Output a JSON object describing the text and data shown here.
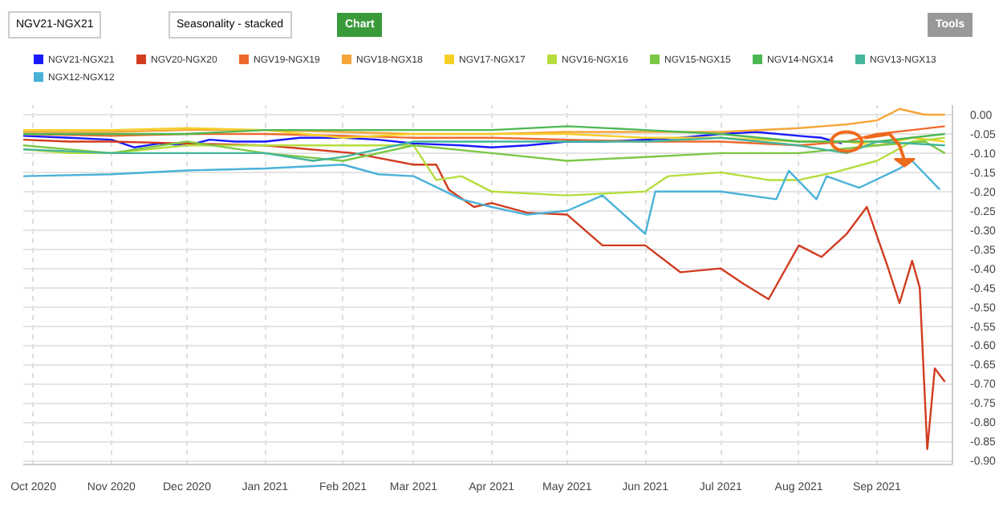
{
  "chart_data": {
    "type": "line",
    "annotations": [
      "NGV21-NGX21",
      "Seasonality - stacked",
      "Chart",
      "Tools"
    ],
    "xlim": [
      "2020-09-27",
      "2021-10-01"
    ],
    "xticks": [
      {
        "value": "2020-10-01",
        "label": "Oct 2020"
      },
      {
        "value": "2020-11-01",
        "label": "Nov 2020"
      },
      {
        "value": "2020-12-01",
        "label": "Dec 2020"
      },
      {
        "value": "2021-01-01",
        "label": "Jan 2021"
      },
      {
        "value": "2021-02-01",
        "label": "Feb 2021"
      },
      {
        "value": "2021-03-01",
        "label": "Mar 2021"
      },
      {
        "value": "2021-04-01",
        "label": "Apr 2021"
      },
      {
        "value": "2021-05-01",
        "label": "May 2021"
      },
      {
        "value": "2021-06-01",
        "label": "Jun 2021"
      },
      {
        "value": "2021-07-01",
        "label": "Jul 2021"
      },
      {
        "value": "2021-08-01",
        "label": "Aug 2021"
      },
      {
        "value": "2021-09-01",
        "label": "Sep 2021"
      }
    ],
    "ylim": [
      -0.91,
      0.025
    ],
    "yticks": [
      {
        "value": 0,
        "label": "0.00"
      },
      {
        "value": -0.05,
        "label": "-0.05"
      },
      {
        "value": -0.1,
        "label": "-0.10"
      },
      {
        "value": -0.15,
        "label": "-0.15"
      },
      {
        "value": -0.2,
        "label": "-0.20"
      },
      {
        "value": -0.25,
        "label": "-0.25"
      },
      {
        "value": -0.3,
        "label": "-0.30"
      },
      {
        "value": -0.35,
        "label": "-0.35"
      },
      {
        "value": -0.4,
        "label": "-0.40"
      },
      {
        "value": -0.45,
        "label": "-0.45"
      },
      {
        "value": -0.5,
        "label": "-0.50"
      },
      {
        "value": -0.55,
        "label": "-0.55"
      },
      {
        "value": -0.6,
        "label": "-0.60"
      },
      {
        "value": -0.65,
        "label": "-0.65"
      },
      {
        "value": -0.7,
        "label": "-0.70"
      },
      {
        "value": -0.75,
        "label": "-0.75"
      },
      {
        "value": -0.8,
        "label": "-0.80"
      },
      {
        "value": -0.85,
        "label": "-0.85"
      },
      {
        "value": -0.9,
        "label": "-0.90"
      }
    ],
    "grid": true,
    "legend": "top",
    "marker": "none",
    "line_style": "solid",
    "series": [
      {
        "name": "NGV21-NGX21",
        "color": "#1a1aff",
        "x": [
          "2020-09-27",
          "2020-10-15",
          "2020-11-01",
          "2020-11-10",
          "2020-11-20",
          "2020-12-01",
          "2020-12-10",
          "2020-12-20",
          "2021-01-01",
          "2021-01-15",
          "2021-02-01",
          "2021-02-15",
          "2021-03-01",
          "2021-03-20",
          "2021-04-01",
          "2021-04-15",
          "2021-05-01",
          "2021-05-15",
          "2021-06-01",
          "2021-06-15",
          "2021-07-01",
          "2021-07-15",
          "2021-08-01",
          "2021-08-10",
          "2021-08-18"
        ],
        "values": [
          -0.055,
          -0.06,
          -0.065,
          -0.085,
          -0.075,
          -0.08,
          -0.065,
          -0.07,
          -0.07,
          -0.06,
          -0.06,
          -0.065,
          -0.075,
          -0.08,
          -0.085,
          -0.08,
          -0.07,
          -0.07,
          -0.065,
          -0.06,
          -0.05,
          -0.045,
          -0.055,
          -0.06,
          -0.075
        ]
      },
      {
        "name": "NGV20-NGX20",
        "color": "#d13b1f",
        "x": [
          "2020-09-27",
          "2020-10-15",
          "2020-11-01",
          "2020-12-01",
          "2021-01-01",
          "2021-02-05",
          "2021-03-01",
          "2021-03-10",
          "2021-03-15",
          "2021-03-25",
          "2021-04-01",
          "2021-04-15",
          "2021-05-01",
          "2021-05-15",
          "2021-06-01",
          "2021-06-15",
          "2021-07-01",
          "2021-07-10",
          "2021-07-20",
          "2021-08-01",
          "2021-08-10",
          "2021-08-20",
          "2021-08-28",
          "2021-09-05",
          "2021-09-10",
          "2021-09-15",
          "2021-09-18",
          "2021-09-21",
          "2021-09-24",
          "2021-09-28"
        ],
        "values": [
          -0.065,
          -0.07,
          -0.07,
          -0.075,
          -0.08,
          -0.1,
          -0.13,
          -0.13,
          -0.195,
          -0.24,
          -0.23,
          -0.255,
          -0.26,
          -0.34,
          -0.34,
          -0.41,
          -0.4,
          -0.44,
          -0.48,
          -0.34,
          -0.37,
          -0.31,
          -0.24,
          -0.39,
          -0.49,
          -0.38,
          -0.45,
          -0.87,
          -0.66,
          -0.695
        ]
      },
      {
        "name": "NGV19-NGX19",
        "color": "#ee6a2c",
        "x": [
          "2020-09-27",
          "2020-11-01",
          "2020-12-01",
          "2021-01-01",
          "2021-02-01",
          "2021-03-01",
          "2021-04-01",
          "2021-05-01",
          "2021-06-01",
          "2021-07-01",
          "2021-08-01",
          "2021-08-20",
          "2021-09-01",
          "2021-09-15",
          "2021-09-28"
        ],
        "values": [
          -0.05,
          -0.055,
          -0.05,
          -0.05,
          -0.055,
          -0.06,
          -0.06,
          -0.065,
          -0.07,
          -0.07,
          -0.08,
          -0.07,
          -0.05,
          -0.04,
          -0.03
        ]
      },
      {
        "name": "NGV18-NGX18",
        "color": "#f5a53a",
        "x": [
          "2020-09-27",
          "2020-11-01",
          "2020-12-01",
          "2021-01-01",
          "2021-02-01",
          "2021-03-01",
          "2021-04-01",
          "2021-05-01",
          "2021-06-01",
          "2021-07-01",
          "2021-08-01",
          "2021-08-20",
          "2021-09-01",
          "2021-09-10",
          "2021-09-20",
          "2021-09-28"
        ],
        "values": [
          -0.045,
          -0.045,
          -0.04,
          -0.04,
          -0.045,
          -0.05,
          -0.05,
          -0.045,
          -0.045,
          -0.045,
          -0.035,
          -0.025,
          -0.015,
          0.015,
          0.0,
          0.0
        ]
      },
      {
        "name": "NGV17-NGX17",
        "color": "#f6cf2a",
        "x": [
          "2020-09-27",
          "2020-11-01",
          "2020-12-01",
          "2021-01-01",
          "2021-02-01",
          "2021-03-01",
          "2021-04-01",
          "2021-05-01",
          "2021-06-01",
          "2021-07-01",
          "2021-08-01",
          "2021-08-20",
          "2021-09-01",
          "2021-09-15",
          "2021-09-28"
        ],
        "values": [
          -0.04,
          -0.04,
          -0.035,
          -0.04,
          -0.06,
          -0.05,
          -0.05,
          -0.05,
          -0.06,
          -0.06,
          -0.07,
          -0.07,
          -0.08,
          -0.06,
          -0.07
        ]
      },
      {
        "name": "NGV16-NGX16",
        "color": "#b5dd3c",
        "x": [
          "2020-09-27",
          "2020-10-15",
          "2020-11-01",
          "2020-12-01",
          "2021-01-01",
          "2021-02-01",
          "2021-03-01",
          "2021-03-10",
          "2021-03-20",
          "2021-04-01",
          "2021-05-01",
          "2021-06-01",
          "2021-06-10",
          "2021-07-01",
          "2021-07-20",
          "2021-08-01",
          "2021-08-15",
          "2021-09-01",
          "2021-09-15",
          "2021-09-28"
        ],
        "values": [
          -0.09,
          -0.1,
          -0.1,
          -0.08,
          -0.08,
          -0.08,
          -0.08,
          -0.17,
          -0.16,
          -0.2,
          -0.21,
          -0.2,
          -0.16,
          -0.15,
          -0.17,
          -0.17,
          -0.15,
          -0.12,
          -0.07,
          -0.06
        ]
      },
      {
        "name": "NGV15-NGX15",
        "color": "#7cc845",
        "x": [
          "2020-09-27",
          "2020-11-01",
          "2020-12-01",
          "2021-01-01",
          "2021-02-01",
          "2021-03-01",
          "2021-04-01",
          "2021-05-01",
          "2021-06-01",
          "2021-07-01",
          "2021-08-01",
          "2021-09-01",
          "2021-09-20",
          "2021-09-28"
        ],
        "values": [
          -0.08,
          -0.1,
          -0.07,
          -0.1,
          -0.12,
          -0.08,
          -0.1,
          -0.12,
          -0.11,
          -0.1,
          -0.1,
          -0.08,
          -0.07,
          -0.1
        ]
      },
      {
        "name": "NGV14-NGX14",
        "color": "#4cb852",
        "x": [
          "2020-09-27",
          "2020-11-01",
          "2020-12-01",
          "2021-01-01",
          "2021-02-01",
          "2021-03-01",
          "2021-04-01",
          "2021-05-01",
          "2021-06-01",
          "2021-07-01",
          "2021-08-01",
          "2021-09-01",
          "2021-09-28"
        ],
        "values": [
          -0.05,
          -0.05,
          -0.05,
          -0.04,
          -0.04,
          -0.04,
          -0.04,
          -0.03,
          -0.04,
          -0.05,
          -0.07,
          -0.07,
          -0.05
        ]
      },
      {
        "name": "NGV13-NGX13",
        "color": "#45b59c",
        "x": [
          "2020-09-27",
          "2020-11-01",
          "2020-12-01",
          "2021-01-01",
          "2021-01-20",
          "2021-02-01",
          "2021-03-01",
          "2021-04-01",
          "2021-06-01",
          "2021-07-01",
          "2021-08-01",
          "2021-08-20",
          "2021-09-01",
          "2021-09-28"
        ],
        "values": [
          -0.09,
          -0.1,
          -0.1,
          -0.1,
          -0.12,
          -0.11,
          -0.07,
          -0.07,
          -0.07,
          -0.06,
          -0.08,
          -0.1,
          -0.07,
          -0.08
        ]
      },
      {
        "name": "NGX12-NGX12",
        "color": "#4ab2d8",
        "x": [
          "2020-09-27",
          "2020-11-01",
          "2020-12-01",
          "2021-01-01",
          "2021-02-01",
          "2021-02-15",
          "2021-03-01",
          "2021-03-20",
          "2021-04-01",
          "2021-04-15",
          "2021-05-01",
          "2021-05-15",
          "2021-06-01",
          "2021-06-05",
          "2021-07-01",
          "2021-07-23",
          "2021-07-28",
          "2021-08-08",
          "2021-08-12",
          "2021-08-25",
          "2021-09-10",
          "2021-09-15",
          "2021-09-26"
        ],
        "values": [
          -0.16,
          -0.155,
          -0.145,
          -0.14,
          -0.13,
          -0.155,
          -0.16,
          -0.22,
          -0.24,
          -0.26,
          -0.25,
          -0.21,
          -0.31,
          -0.2,
          -0.2,
          -0.22,
          -0.146,
          -0.22,
          -0.16,
          -0.19,
          -0.14,
          -0.12,
          -0.195
        ]
      }
    ]
  }
}
